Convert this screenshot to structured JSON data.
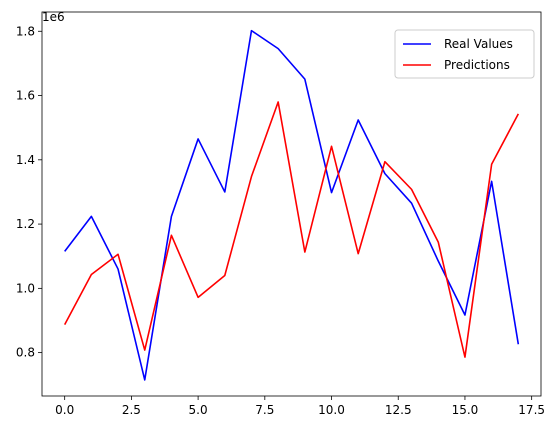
{
  "chart_data": {
    "type": "line",
    "title": "",
    "xlabel": "",
    "ylabel": "",
    "y_offset_label": "1e6",
    "xlim": [
      -0.85,
      17.85
    ],
    "ylim": [
      0.665,
      1.86
    ],
    "x_ticks": [
      0.0,
      2.5,
      5.0,
      7.5,
      10.0,
      12.5,
      15.0,
      17.5
    ],
    "x_tick_labels": [
      "0.0",
      "2.5",
      "5.0",
      "7.5",
      "10.0",
      "12.5",
      "15.0",
      "17.5"
    ],
    "y_ticks": [
      0.8,
      1.0,
      1.2,
      1.4,
      1.6,
      1.8
    ],
    "y_tick_labels": [
      "0.8",
      "1.0",
      "1.2",
      "1.4",
      "1.6",
      "1.8"
    ],
    "grid": false,
    "legend_position": "top-right",
    "x": [
      0,
      1,
      2,
      3,
      4,
      5,
      6,
      7,
      8,
      9,
      10,
      11,
      12,
      13,
      14,
      15,
      16,
      17
    ],
    "series": [
      {
        "name": "Real Values",
        "color": "#0000ff",
        "values": [
          1.115,
          1.224,
          1.06,
          0.715,
          1.224,
          1.465,
          1.3,
          1.802,
          1.746,
          1.651,
          1.298,
          1.524,
          1.357,
          1.265,
          1.085,
          0.917,
          1.333,
          0.826
        ]
      },
      {
        "name": "Predictions",
        "color": "#ff0000",
        "values": [
          0.887,
          1.043,
          1.106,
          0.808,
          1.165,
          0.972,
          1.04,
          1.348,
          1.58,
          1.113,
          1.442,
          1.108,
          1.394,
          1.308,
          1.144,
          0.786,
          1.386,
          1.543
        ]
      }
    ]
  }
}
